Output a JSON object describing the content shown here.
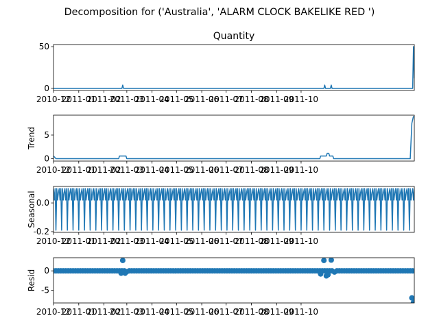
{
  "figure_title": "Decomposition for ('Australia', 'ALARM CLOCK BAKELIKE RED ')",
  "colors": {
    "line": "#1f77b4",
    "axis": "#000000",
    "background": "#ffffff"
  },
  "x_tick_labels": [
    "2010-12",
    "2011-01",
    "2011-02",
    "2011-03",
    "2011-04",
    "2011-05",
    "2011-06",
    "2011-07",
    "2011-08",
    "2011-09",
    "2011-10"
  ],
  "chart_data": [
    {
      "type": "line",
      "title": "Quantity",
      "ylabel": "",
      "x_range": [
        "2010-12-01",
        "2011-10-04"
      ],
      "ylim": [
        -2.5,
        52.5
      ],
      "yticks": [
        0,
        50
      ],
      "series": [
        {
          "values": [
            [
              0,
              0
            ],
            [
              1,
              0
            ],
            [
              84,
              0
            ],
            [
              85,
              4
            ],
            [
              86,
              0
            ],
            [
              332,
              0
            ],
            [
              333,
              4
            ],
            [
              334,
              0
            ],
            [
              340,
              0
            ],
            [
              341,
              4
            ],
            [
              342,
              0
            ],
            [
              441,
              0
            ],
            [
              442,
              50
            ],
            [
              443,
              12
            ]
          ]
        }
      ]
    },
    {
      "type": "line",
      "title": "",
      "ylabel": "Trend",
      "x_range": [
        "2010-12-01",
        "2011-10-04"
      ],
      "ylim": [
        -0.5,
        9.2
      ],
      "yticks": [
        0,
        5
      ],
      "series": [
        {
          "values": [
            [
              0,
              0.57
            ],
            [
              3,
              0
            ],
            [
              80,
              0
            ],
            [
              81,
              0.57
            ],
            [
              89,
              0.57
            ],
            [
              90,
              0
            ],
            [
              327,
              0
            ],
            [
              328,
              0.57
            ],
            [
              335,
              0.57
            ],
            [
              336,
              1.14
            ],
            [
              338,
              1.14
            ],
            [
              339,
              0.57
            ],
            [
              343,
              0.57
            ],
            [
              344,
              0
            ],
            [
              438,
              0
            ],
            [
              440,
              7.5
            ],
            [
              442,
              9
            ]
          ]
        }
      ]
    },
    {
      "type": "line",
      "title": "",
      "ylabel": "Seasonal",
      "x_range": [
        "2010-12-01",
        "2011-10-04"
      ],
      "ylim": [
        -0.205,
        0.115
      ],
      "yticks": [
        -0.2,
        0.0
      ],
      "period": 7,
      "pattern": [
        0.1,
        0.02,
        0.1,
        -0.19,
        0.1,
        0.02,
        0.07
      ],
      "start": 0,
      "end": 443
    },
    {
      "type": "scatter",
      "title": "",
      "ylabel": "Resid",
      "x_range": [
        "2010-12-01",
        "2011-10-04"
      ],
      "ylim": [
        -8.3,
        3.4
      ],
      "yticks": [
        -5,
        0
      ],
      "step": 3,
      "outliers": [
        [
          83,
          -0.6
        ],
        [
          85,
          2.7
        ],
        [
          88,
          -0.6
        ],
        [
          90,
          -0.2
        ],
        [
          328,
          -0.8
        ],
        [
          332,
          2.7
        ],
        [
          335,
          -1.3
        ],
        [
          337,
          -1.0
        ],
        [
          341,
          2.8
        ],
        [
          345,
          -0.3
        ],
        [
          440,
          -7.0
        ],
        [
          442,
          -8.2
        ]
      ]
    }
  ]
}
